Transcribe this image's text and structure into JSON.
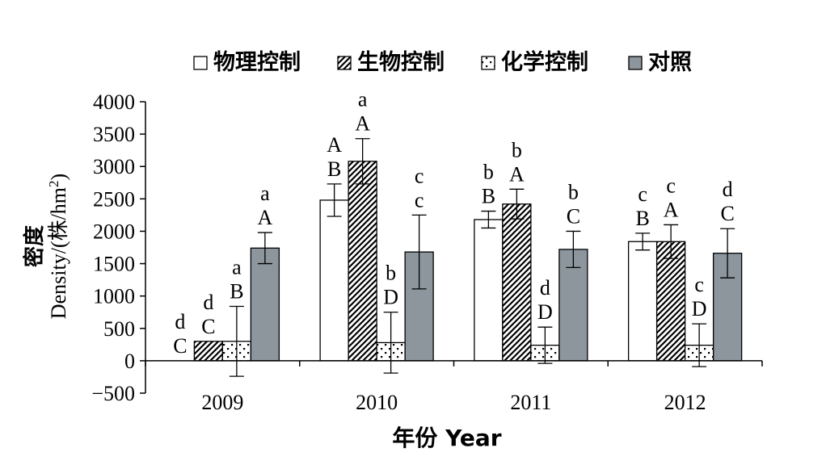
{
  "chart_data": {
    "type": "bar",
    "ylabel": "密度",
    "ylabel_en_prefix": "Density/(株/hm",
    "ylabel_en_sup": "2",
    "ylabel_en_suffix": ")",
    "xlabel": "年份 Year",
    "categories": [
      "2009",
      "2010",
      "2011",
      "2012"
    ],
    "ylim": [
      -500,
      4000
    ],
    "yticks": [
      -500,
      0,
      500,
      1000,
      1500,
      2000,
      2500,
      3000,
      3500,
      4000
    ],
    "ytick_labels": [
      "−500",
      "0",
      "500",
      "1000",
      "1500",
      "2000",
      "2500",
      "3000",
      "3500",
      "4000"
    ],
    "legend_position": "top",
    "series": [
      {
        "name": "物理控制",
        "pattern": "plain",
        "fill": "#ffffff",
        "values": [
          0,
          2480,
          2180,
          1840
        ],
        "errors": [
          0,
          250,
          130,
          130
        ],
        "labels_upper": [
          "d",
          "A",
          "b",
          "c"
        ],
        "labels_lower": [
          "C",
          "B",
          "B",
          "B"
        ]
      },
      {
        "name": "生物控制",
        "pattern": "hatch",
        "fill": "#ffffff",
        "values": [
          300,
          3080,
          2420,
          1840
        ],
        "errors": [
          0,
          350,
          230,
          260
        ],
        "labels_upper": [
          "d",
          "a",
          "b",
          "c"
        ],
        "labels_lower": [
          "C",
          "A",
          "A",
          "A"
        ]
      },
      {
        "name": "化学控制",
        "pattern": "dots",
        "fill": "#ffffff",
        "values": [
          300,
          280,
          240,
          240
        ],
        "errors": [
          540,
          470,
          280,
          330
        ],
        "labels_upper": [
          "a",
          "b",
          "d",
          "c"
        ],
        "labels_lower": [
          "B",
          "D",
          "D",
          "D"
        ]
      },
      {
        "name": "对照",
        "pattern": "solid",
        "fill": "#8c969c",
        "values": [
          1740,
          1680,
          1720,
          1660
        ],
        "errors": [
          240,
          570,
          280,
          380
        ],
        "labels_upper": [
          "a",
          "c",
          "b",
          "d"
        ],
        "labels_lower": [
          "A",
          "c",
          "C",
          "C"
        ]
      }
    ]
  }
}
